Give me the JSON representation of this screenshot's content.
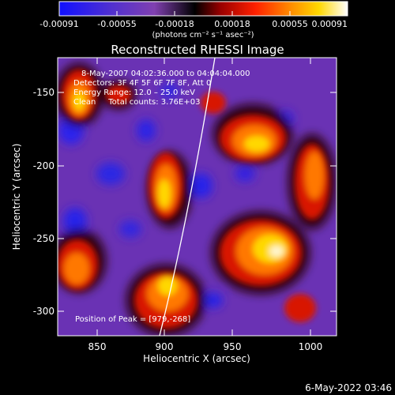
{
  "colorbar": {
    "ticks": [
      "-0.00091",
      "-0.00055",
      "-0.00018",
      "0.00018",
      "0.00055",
      "0.00091"
    ],
    "tick_values": [
      -0.00091,
      -0.00055,
      -0.00018,
      0.00018,
      0.00055,
      0.00091
    ],
    "units": "(photons cm⁻² s⁻¹ asec⁻²)"
  },
  "image": {
    "title": "Reconstructed RHESSI Image",
    "time_range": "8-May-2007 04:02:36.000 to 04:04:04.000",
    "detectors": "Detectors: 3F 4F 5F 6F 7F 8F, Att 0",
    "energy_range": "Energy Range: 12.0 – 25.0 keV",
    "method_line": "Clean     Total counts: 3.76E+03",
    "peak": "Position of Peak = [979,-268]"
  },
  "axes": {
    "xlabel": "Heliocentric X (arcsec)",
    "ylabel": "Heliocentric Y (arcsec)",
    "xticks": [
      "850",
      "900",
      "950",
      "1000"
    ],
    "xtick_values": [
      850,
      900,
      950,
      1000
    ],
    "yticks": [
      "-150",
      "-200",
      "-250",
      "-300"
    ],
    "ytick_values": [
      -150,
      -200,
      -250,
      -300
    ],
    "xlim": [
      823,
      1015
    ],
    "ylim": [
      -320,
      -132
    ]
  },
  "footer": {
    "timestamp": "6-May-2022 03:46"
  },
  "colors": {
    "background": "#000000",
    "text": "#ffffff",
    "limb_line": "#ffffff"
  }
}
